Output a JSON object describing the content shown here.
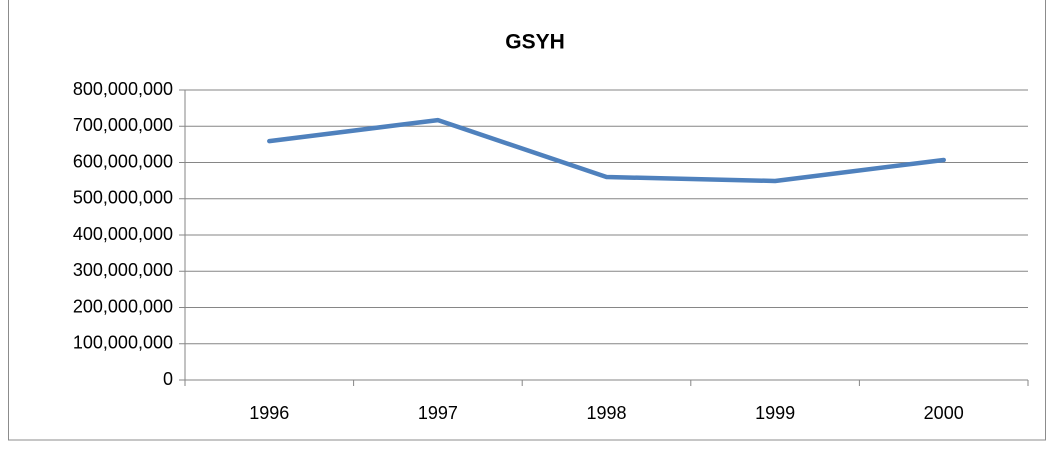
{
  "chart_data": {
    "type": "line",
    "title": "GSYH",
    "categories": [
      "1996",
      "1997",
      "1998",
      "1999",
      "2000"
    ],
    "series": [
      {
        "name": "GSYH",
        "color": "#4f81bd",
        "values": [
          659000000,
          717000000,
          560000000,
          549000000,
          607000000
        ]
      }
    ],
    "ylim": [
      0,
      800000000
    ],
    "yticks": [
      0,
      {
        "value": 100000000,
        "label": "100,000,000"
      },
      {
        "value": 200000000,
        "label": "200,000,000"
      },
      {
        "value": 300000000,
        "label": "300,000,000"
      },
      {
        "value": 400000000,
        "label": "400,000,000"
      },
      {
        "value": 500000000,
        "label": "500,000,000"
      },
      {
        "value": 600000000,
        "label": "600,000,000"
      },
      {
        "value": 700000000,
        "label": "700,000,000"
      },
      {
        "value": 800000000,
        "label": "800,000,000"
      }
    ],
    "grid": true,
    "legend": false
  }
}
